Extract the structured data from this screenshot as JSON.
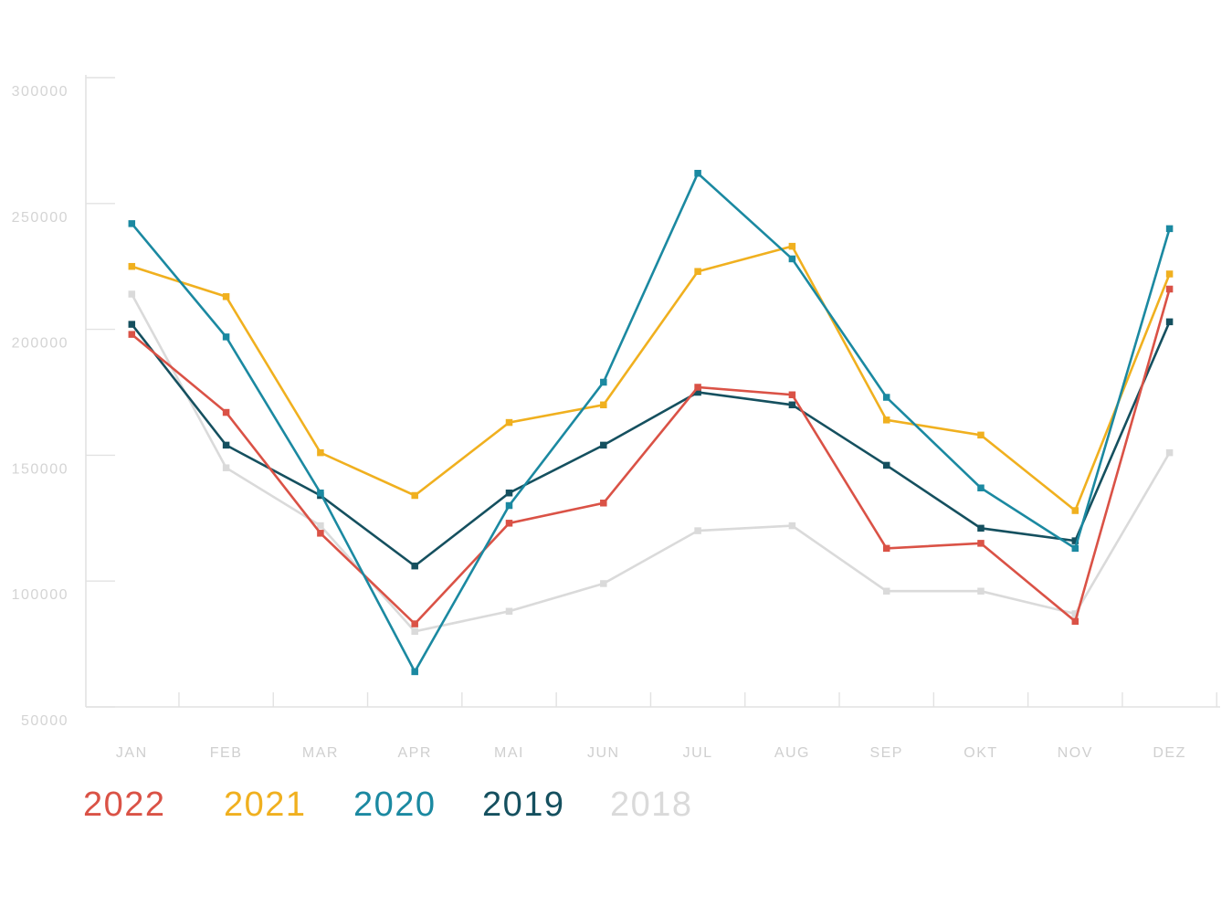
{
  "chart_data": {
    "type": "line",
    "categories": [
      "JAN",
      "FEB",
      "MAR",
      "APR",
      "MAI",
      "JUN",
      "JUL",
      "AUG",
      "SEP",
      "OKT",
      "NOV",
      "DEZ"
    ],
    "series": [
      {
        "name": "2022",
        "color": "#da5246",
        "values": [
          198000,
          167000,
          119000,
          83000,
          123000,
          131000,
          177000,
          174000,
          113000,
          115000,
          84000,
          216000
        ]
      },
      {
        "name": "2021",
        "color": "#f0b01f",
        "values": [
          225000,
          213000,
          151000,
          134000,
          163000,
          170000,
          223000,
          233000,
          164000,
          158000,
          128000,
          222000
        ]
      },
      {
        "name": "2020",
        "color": "#1b89a1",
        "values": [
          242000,
          197000,
          135000,
          64000,
          130000,
          179000,
          262000,
          228000,
          173000,
          137000,
          113000,
          240000
        ]
      },
      {
        "name": "2019",
        "color": "#15505f",
        "values": [
          202000,
          154000,
          134000,
          106000,
          135000,
          154000,
          175000,
          170000,
          146000,
          121000,
          116000,
          203000
        ]
      },
      {
        "name": "2018",
        "color": "#dadada",
        "values": [
          214000,
          145000,
          122000,
          80000,
          88000,
          99000,
          120000,
          122000,
          96000,
          96000,
          87000,
          151000
        ]
      }
    ],
    "z_order": [
      "2018",
      "2019",
      "2021",
      "2022",
      "2020"
    ],
    "title": "",
    "xlabel": "",
    "ylabel": "",
    "ylim": [
      50000,
      300000
    ],
    "yticks": [
      50000,
      100000,
      150000,
      200000,
      250000,
      300000
    ],
    "grid": false,
    "marker": "square",
    "legend_position": "bottom-left"
  },
  "axis_style": {
    "axis_color": "#e2e2e2",
    "tick_color": "#e2e2e2",
    "tick_label_color": "#d4d4d4",
    "month_label_color": "#cfcfcf"
  }
}
